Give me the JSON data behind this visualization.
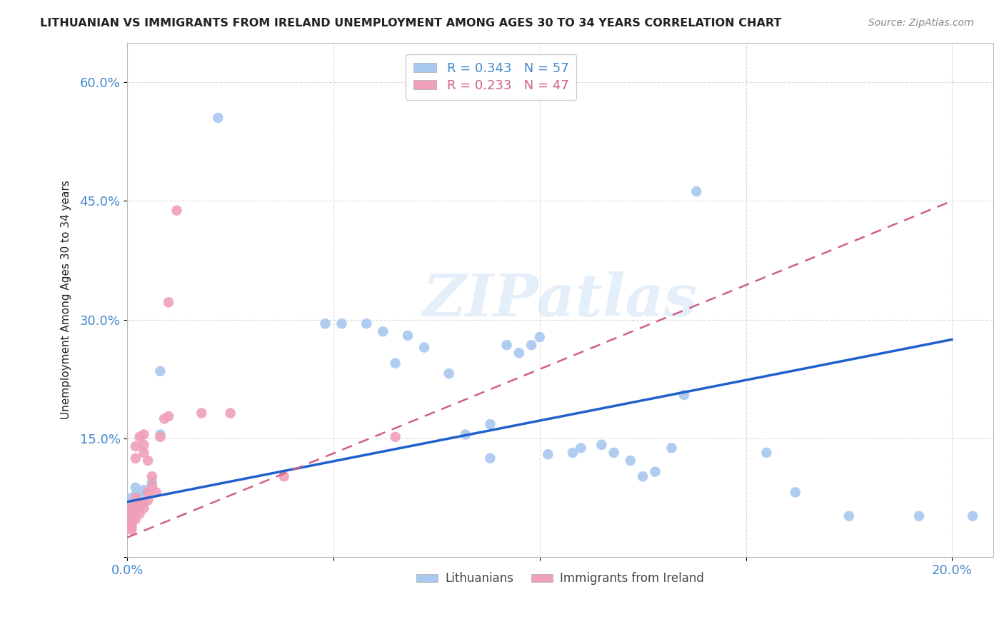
{
  "title": "LITHUANIAN VS IMMIGRANTS FROM IRELAND UNEMPLOYMENT AMONG AGES 30 TO 34 YEARS CORRELATION CHART",
  "source": "Source: ZipAtlas.com",
  "ylabel": "Unemployment Among Ages 30 to 34 years",
  "watermark": "ZIPatlas",
  "xlim": [
    0.0,
    0.21
  ],
  "ylim": [
    0.0,
    0.65
  ],
  "yticks": [
    0.0,
    0.15,
    0.3,
    0.45,
    0.6
  ],
  "xticks": [
    0.0,
    0.05,
    0.1,
    0.15,
    0.2
  ],
  "xtick_labels": [
    "0.0%",
    "",
    "",
    "",
    "20.0%"
  ],
  "ytick_labels": [
    "",
    "15.0%",
    "30.0%",
    "45.0%",
    "60.0%"
  ],
  "R_blue": 0.343,
  "N_blue": 57,
  "R_pink": 0.233,
  "N_pink": 47,
  "legend_labels": [
    "Lithuanians",
    "Immigrants from Ireland"
  ],
  "blue_color": "#A8C8F0",
  "pink_color": "#F0A0B8",
  "blue_line_color": "#2060CC",
  "pink_line_color": "#D06080",
  "grid_color": "#CCCCCC",
  "title_color": "#222222",
  "tick_label_color": "#4488CC",
  "background_color": "#FFFFFF",
  "blue_line_x0": 0.0,
  "blue_line_y0": 0.07,
  "blue_line_x1": 0.2,
  "blue_line_y1": 0.275,
  "pink_line_x0": 0.0,
  "pink_line_y0": 0.025,
  "pink_line_x1": 0.2,
  "pink_line_y1": 0.45,
  "blue_scatter_x": [
    0.022,
    0.008,
    0.008,
    0.006,
    0.004,
    0.003,
    0.003,
    0.003,
    0.002,
    0.002,
    0.002,
    0.002,
    0.002,
    0.002,
    0.001,
    0.001,
    0.001,
    0.001,
    0.001,
    0.001,
    0.001,
    0.001,
    0.001,
    0.001,
    0.001,
    0.001,
    0.048,
    0.052,
    0.058,
    0.062,
    0.065,
    0.068,
    0.072,
    0.078,
    0.082,
    0.088,
    0.088,
    0.092,
    0.095,
    0.098,
    0.1,
    0.102,
    0.108,
    0.11,
    0.115,
    0.118,
    0.122,
    0.125,
    0.128,
    0.132,
    0.135,
    0.138,
    0.155,
    0.162,
    0.175,
    0.192,
    0.205
  ],
  "blue_scatter_y": [
    0.555,
    0.235,
    0.155,
    0.095,
    0.085,
    0.065,
    0.065,
    0.075,
    0.055,
    0.055,
    0.065,
    0.072,
    0.078,
    0.088,
    0.045,
    0.055,
    0.062,
    0.068,
    0.075,
    0.038,
    0.042,
    0.048,
    0.052,
    0.035,
    0.04,
    0.045,
    0.295,
    0.295,
    0.295,
    0.285,
    0.245,
    0.28,
    0.265,
    0.232,
    0.155,
    0.168,
    0.125,
    0.268,
    0.258,
    0.268,
    0.278,
    0.13,
    0.132,
    0.138,
    0.142,
    0.132,
    0.122,
    0.102,
    0.108,
    0.138,
    0.205,
    0.462,
    0.132,
    0.082,
    0.052,
    0.052,
    0.052
  ],
  "pink_scatter_x": [
    0.001,
    0.001,
    0.001,
    0.001,
    0.001,
    0.001,
    0.001,
    0.001,
    0.001,
    0.001,
    0.001,
    0.001,
    0.001,
    0.001,
    0.001,
    0.001,
    0.002,
    0.002,
    0.002,
    0.002,
    0.002,
    0.002,
    0.002,
    0.003,
    0.003,
    0.003,
    0.003,
    0.004,
    0.004,
    0.004,
    0.004,
    0.004,
    0.005,
    0.005,
    0.005,
    0.006,
    0.006,
    0.007,
    0.008,
    0.009,
    0.01,
    0.01,
    0.012,
    0.018,
    0.025,
    0.038,
    0.065
  ],
  "pink_scatter_y": [
    0.038,
    0.038,
    0.042,
    0.045,
    0.048,
    0.05,
    0.052,
    0.055,
    0.058,
    0.06,
    0.062,
    0.035,
    0.04,
    0.042,
    0.038,
    0.04,
    0.048,
    0.055,
    0.062,
    0.068,
    0.075,
    0.125,
    0.14,
    0.055,
    0.062,
    0.068,
    0.152,
    0.062,
    0.068,
    0.132,
    0.142,
    0.155,
    0.072,
    0.082,
    0.122,
    0.09,
    0.102,
    0.082,
    0.152,
    0.175,
    0.178,
    0.322,
    0.438,
    0.182,
    0.182,
    0.102,
    0.152
  ]
}
